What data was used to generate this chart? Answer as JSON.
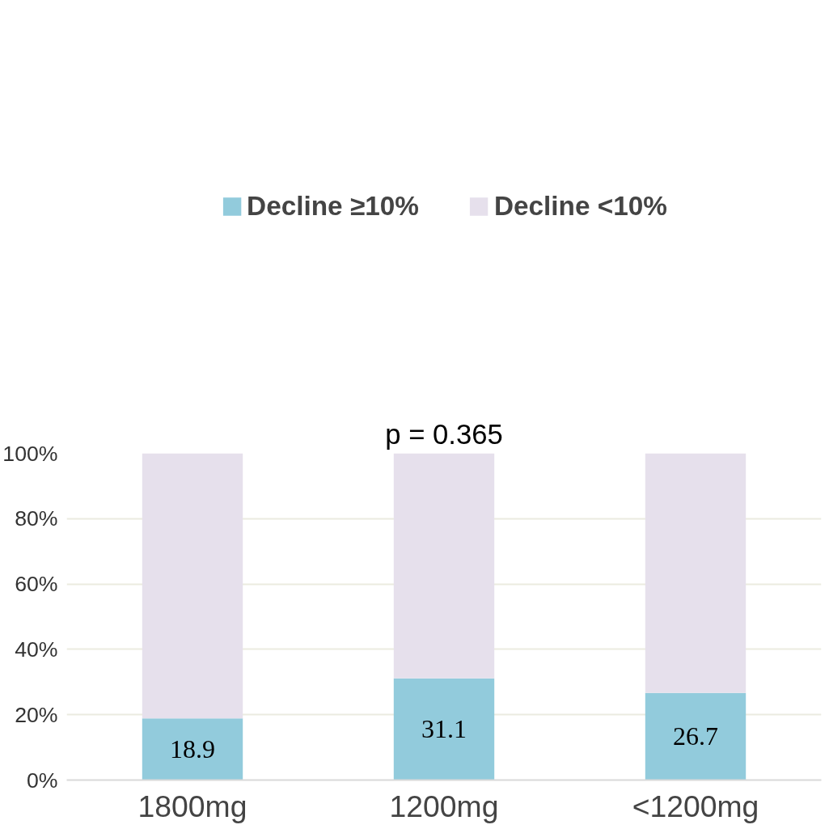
{
  "chart_data": {
    "type": "bar",
    "title": "p = 0.365",
    "stacked": true,
    "categories": [
      "1800mg",
      "1200mg",
      "<1200mg"
    ],
    "series": [
      {
        "name": "Decline ≥10%",
        "color": "#92cbdc",
        "values": [
          18.9,
          31.1,
          26.7
        ],
        "value_labels": [
          "18.9",
          "31.1",
          "26.7"
        ]
      },
      {
        "name": "Decline <10%",
        "color": "#e6e0ec",
        "values": [
          81.1,
          68.9,
          73.3
        ]
      }
    ],
    "ylim": [
      0,
      100
    ],
    "yticks": [
      {
        "value": 0,
        "label": "0%"
      },
      {
        "value": 20,
        "label": "20%"
      },
      {
        "value": 40,
        "label": "40%"
      },
      {
        "value": 60,
        "label": "60%"
      },
      {
        "value": 80,
        "label": "80%"
      },
      {
        "value": 100,
        "label": "100%"
      }
    ],
    "grid": "y",
    "legend": "top"
  }
}
